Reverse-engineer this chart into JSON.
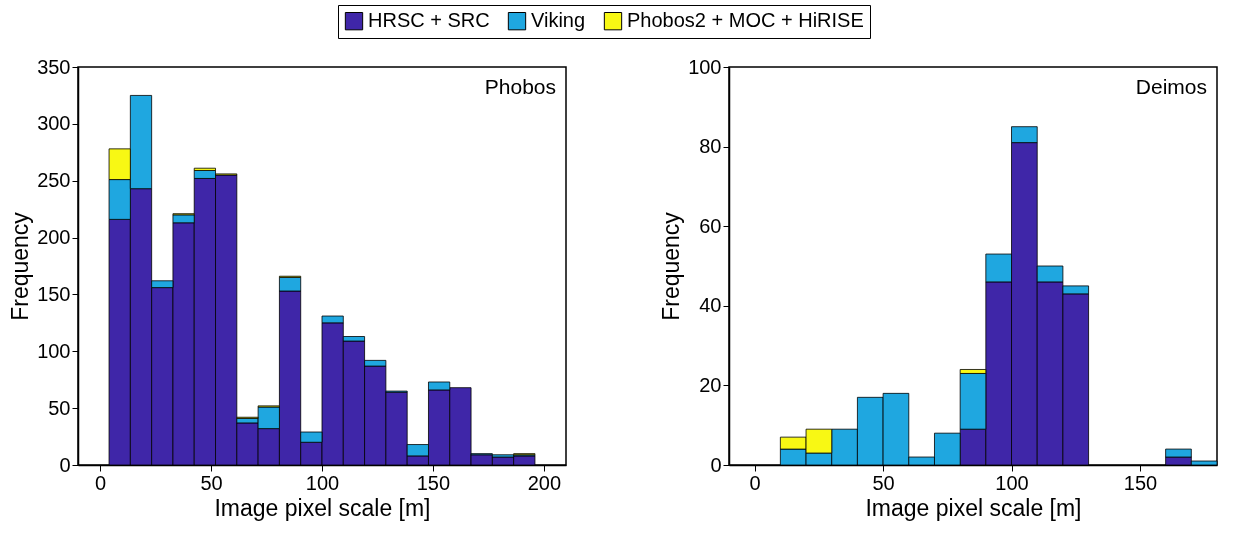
{
  "chart_data": [
    {
      "type": "bar",
      "title": "Phobos",
      "xlabel": "Image pixel scale [m]",
      "ylabel": "Frequency",
      "stacked": true,
      "legend": "top",
      "x": [
        8.8,
        18.4,
        28,
        37.6,
        47.2,
        56.8,
        66.4,
        76,
        85.6,
        95.2,
        104.8,
        114.4,
        124,
        133.6,
        143.2,
        152.8,
        162.4,
        172,
        181.6,
        191.2
      ],
      "series": [
        {
          "name": "HRSC + SRC",
          "color": "#3f26a8",
          "values": [
            216,
            243,
            156,
            213,
            252,
            255,
            37,
            32,
            153,
            20,
            125,
            109,
            87,
            64,
            8,
            66,
            68,
            9,
            7,
            8
          ]
        },
        {
          "name": "Viking",
          "color": "#1fa7e0",
          "values": [
            35,
            82,
            6,
            7,
            7,
            0,
            4,
            19,
            12,
            9,
            6,
            4,
            5,
            1,
            10,
            7,
            0,
            1,
            2,
            1
          ]
        },
        {
          "name": "Phobos2 + MOC + HiRISE",
          "color": "#f8f814",
          "values": [
            27,
            0,
            0,
            1,
            2,
            1,
            1,
            1,
            1,
            0,
            0,
            0,
            0,
            0,
            0,
            0,
            0,
            0,
            0,
            1
          ]
        }
      ],
      "xlim": [
        -10,
        210
      ],
      "xticks": [
        0,
        50,
        100,
        150,
        200
      ],
      "ylim": [
        0,
        350
      ],
      "yticks": [
        0,
        50,
        100,
        150,
        200,
        250,
        300,
        350
      ]
    },
    {
      "type": "bar",
      "title": "Deimos",
      "xlabel": "Image pixel scale [m]",
      "ylabel": "Frequency",
      "stacked": true,
      "legend": "top",
      "x": [
        15,
        25,
        35,
        45,
        55,
        65,
        75,
        85,
        95,
        105,
        115,
        125,
        135,
        145,
        155,
        165,
        175
      ],
      "series": [
        {
          "name": "HRSC + SRC",
          "color": "#3f26a8",
          "values": [
            0,
            0,
            0,
            0,
            0,
            0,
            0,
            9,
            46,
            81,
            46,
            43,
            0,
            0,
            0,
            2,
            0
          ]
        },
        {
          "name": "Viking",
          "color": "#1fa7e0",
          "values": [
            4,
            3,
            9,
            17,
            18,
            2,
            8,
            14,
            7,
            4,
            4,
            2,
            0,
            0,
            0,
            2,
            1
          ]
        },
        {
          "name": "Phobos2 + MOC + HiRISE",
          "color": "#f8f814",
          "values": [
            3,
            6,
            0,
            0,
            0,
            0,
            0,
            1,
            0,
            0,
            0,
            0,
            0,
            0,
            0,
            0,
            0
          ]
        }
      ],
      "xlim": [
        -10,
        180
      ],
      "xticks": [
        0,
        50,
        100,
        150
      ],
      "ylim": [
        0,
        100
      ],
      "yticks": [
        0,
        20,
        40,
        60,
        80,
        100
      ]
    }
  ]
}
